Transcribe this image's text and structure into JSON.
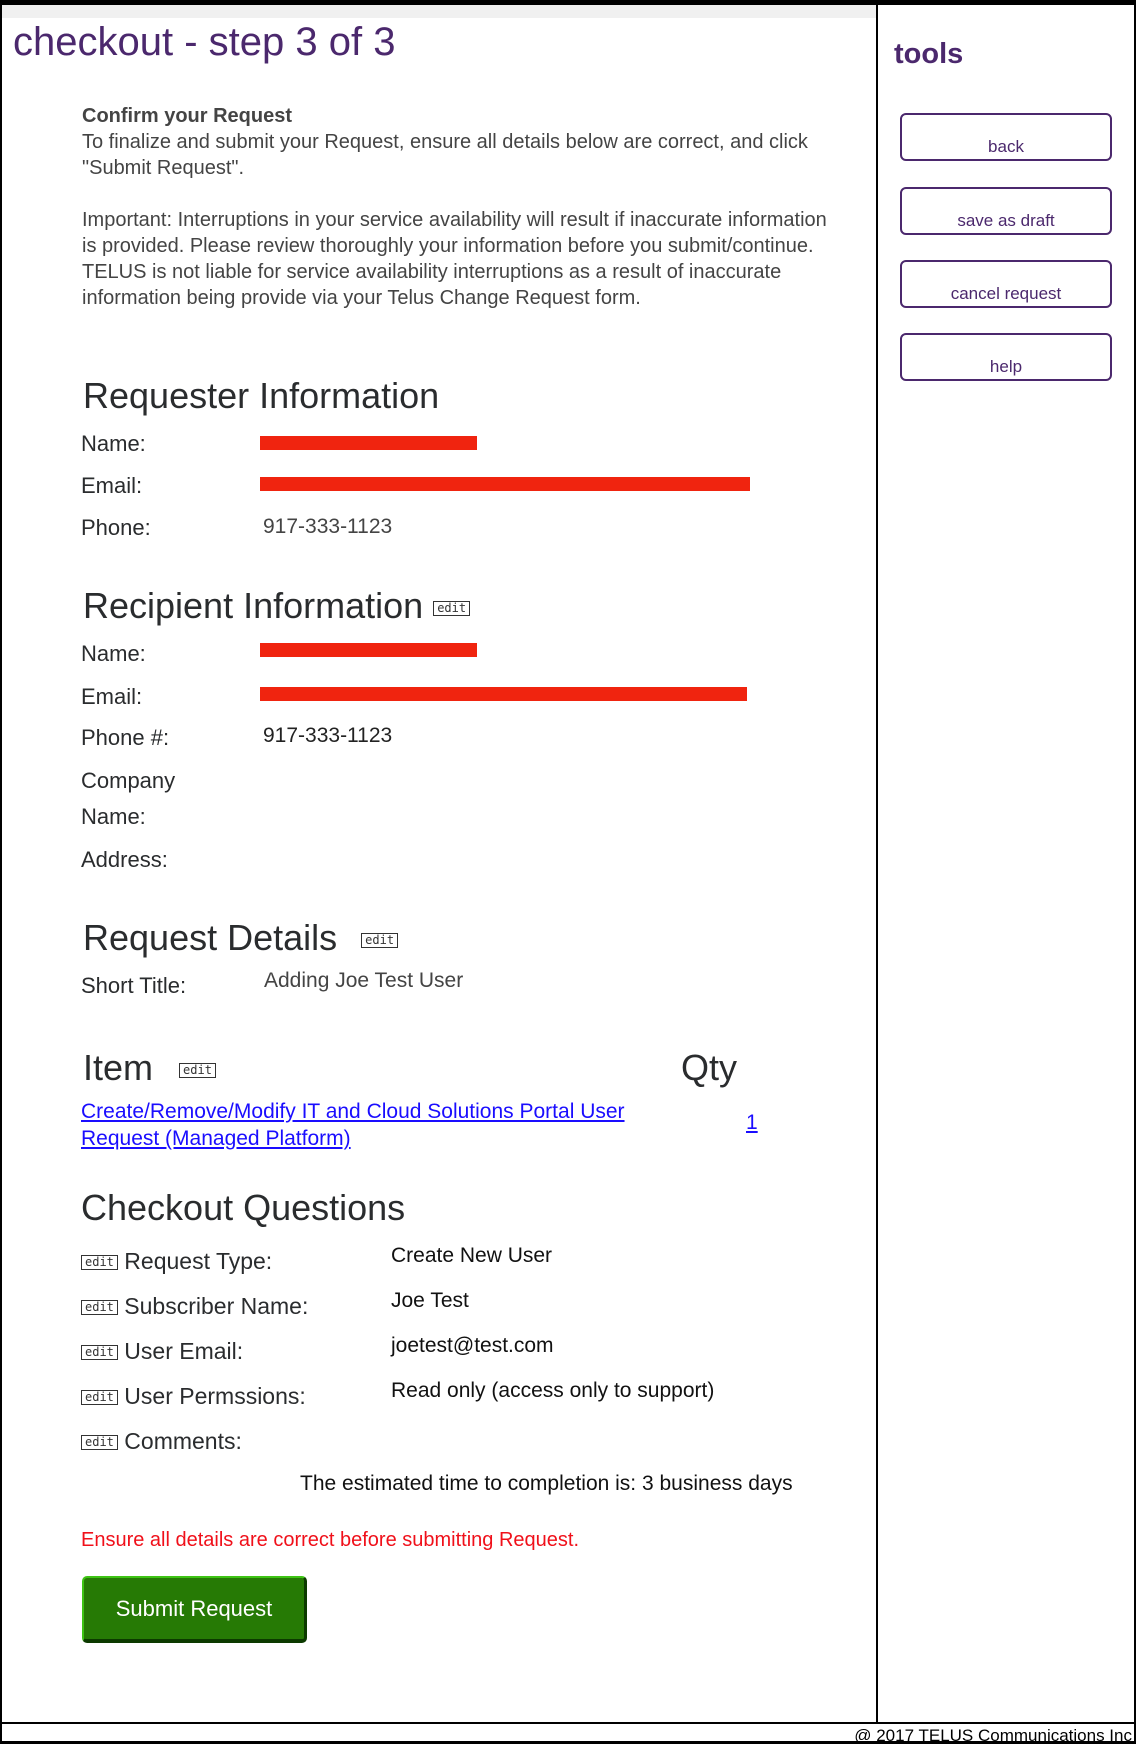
{
  "page": {
    "title": "checkout - step 3 of 3"
  },
  "sidebar": {
    "title": "tools",
    "buttons": [
      {
        "label": "back"
      },
      {
        "label": "save as draft"
      },
      {
        "label": "cancel request"
      },
      {
        "label": "help"
      }
    ]
  },
  "intro": {
    "heading": "Confirm your Request",
    "line1": "To finalize and submit your Request, ensure all details below are correct, and click \"Submit Request\".",
    "important": "Important: Interruptions in your service availability will result if inaccurate information is provided. Please review thoroughly your information before you submit/continue. TELUS is not liable for service availability interruptions as a result of inaccurate information being provide via your Telus Change Request form."
  },
  "requester": {
    "heading": "Requester Information",
    "name_label": "Name:",
    "email_label": "Email:",
    "phone_label": "Phone:",
    "phone": "917-333-1123"
  },
  "recipient": {
    "heading": "Recipient Information",
    "edit": "edit",
    "name_label": "Name:",
    "email_label": "Email:",
    "phone_label": "Phone #:",
    "phone": "917-333-1123",
    "company_label_1": "Company",
    "company_label_2": "Name:",
    "address_label": "Address:"
  },
  "details": {
    "heading": "Request Details",
    "edit": "edit",
    "short_title_label": "Short Title:",
    "short_title": "Adding Joe Test User"
  },
  "item": {
    "heading": "Item",
    "edit": "edit",
    "qty_heading": "Qty",
    "link_line1": "Create/Remove/Modify IT and Cloud Solutions Portal User",
    "link_line2": "Request (Managed Platform)",
    "qty": "1"
  },
  "questions": {
    "heading": "Checkout Questions",
    "edit": "edit",
    "rows": [
      {
        "label": "Request Type:",
        "value": "Create New User"
      },
      {
        "label": "Subscriber Name:",
        "value": "Joe Test"
      },
      {
        "label": "User Email:",
        "value": "joetest@test.com"
      },
      {
        "label": "User Permssions:",
        "value": "Read only (access only to support)"
      },
      {
        "label": "Comments:",
        "value": ""
      }
    ],
    "estimate": "The estimated time to completion is: 3 business days",
    "warning": "Ensure all details are correct before submitting Request.",
    "submit": "Submit Request"
  },
  "footer": {
    "copyright": "@ 2017 TELUS Communications Inc"
  },
  "colors": {
    "brand": "#4b286d",
    "submit": "#267a05",
    "warning": "#f0101a",
    "redaction": "#f0240f",
    "link": "#1a0dff"
  }
}
